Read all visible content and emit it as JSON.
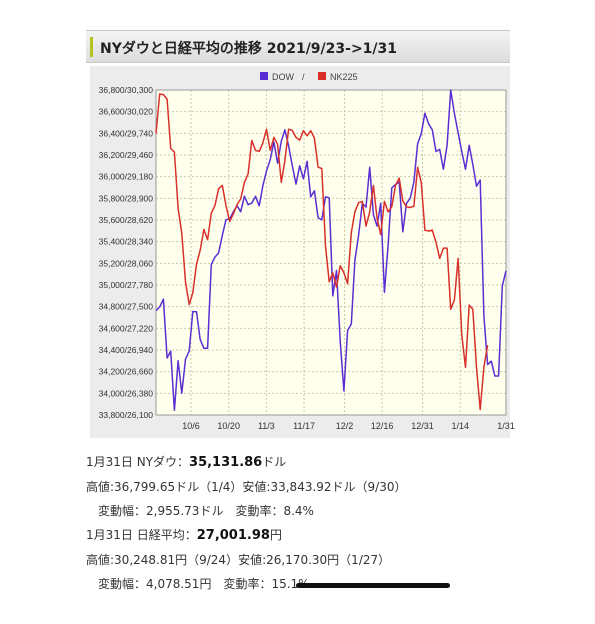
{
  "header": {
    "title": "NYダウと日経平均の推移 2021/9/23->1/31"
  },
  "chart_data": {
    "type": "line",
    "title": "",
    "legend": {
      "placement": "top-center",
      "separator": "/"
    },
    "y_tick_labels": [
      "36,800/30,300",
      "36,600/30,020",
      "36,400/29,740",
      "36,200/29,460",
      "36,000/29,180",
      "35,800/28,900",
      "35,600/28,620",
      "35,400/28,340",
      "35,200/28,060",
      "35,000/27,780",
      "34,800/27,500",
      "34,600/27,220",
      "34,400/26,940",
      "34,200/26,660",
      "34,000/26,380",
      "33,800/26,100"
    ],
    "x_tick_labels": [
      "10/6",
      "10/20",
      "11/3",
      "11/17",
      "12/2",
      "12/16",
      "12/31",
      "1/14",
      "1/31"
    ],
    "x_range": [
      "9/23",
      "1/31"
    ],
    "ylim_dow": [
      33800,
      36800
    ],
    "ylim_nk225": [
      26100,
      30300
    ],
    "grid": true,
    "colors": {
      "plot_bg": "#ffffee",
      "grid": "#c9c9a8"
    },
    "series": [
      {
        "name": "DOW",
        "color": "#5a2ed2",
        "values": [
          34764,
          34798,
          34869,
          34326,
          34390,
          33843,
          34300,
          34002,
          34315,
          34390,
          34755,
          34754,
          34496,
          34416,
          34417,
          35190,
          35258,
          35295,
          35457,
          35603,
          35609,
          35677,
          35730,
          35677,
          35820,
          35741,
          35756,
          35819,
          35731,
          35913,
          36052,
          36157,
          36320,
          36124,
          36328,
          36432,
          36286,
          36100,
          35931,
          36100,
          35980,
          36142,
          35814,
          35870,
          35619,
          35601,
          35813,
          35805,
          34899,
          35135,
          34483,
          34022,
          34580,
          34640,
          35227,
          35460,
          35754,
          35719,
          36087,
          35650,
          35544,
          35754,
          34932,
          35365,
          35897,
          35928,
          35950,
          35491,
          35753,
          35801,
          35951,
          36302,
          36398,
          36585,
          36488,
          36432,
          36232,
          36252,
          36069,
          36290,
          36799,
          36585,
          36407,
          36231,
          36068,
          36290,
          36113,
          35911,
          35969,
          34715,
          34265,
          34297,
          34160,
          34160,
          34990,
          35131
        ]
      },
      {
        "name": "NK225",
        "color": "#d8302a",
        "values": [
          29740,
          30248,
          30240,
          30183,
          29544,
          29499,
          28772,
          28444,
          27822,
          27528,
          27678,
          28048,
          28230,
          28498,
          28366,
          28708,
          28805,
          29025,
          29068,
          28804,
          28600,
          28700,
          28820,
          28893,
          29106,
          29215,
          29647,
          29520,
          29507,
          29612,
          29794,
          29520,
          29688,
          29598,
          29107,
          29388,
          29794,
          29776,
          29688,
          29652,
          29774,
          29708,
          29774,
          29680,
          29302,
          29285,
          28283,
          27822,
          27935,
          27753,
          28029,
          27936,
          27795,
          28455,
          28725,
          28843,
          28860,
          28541,
          28725,
          29066,
          28640,
          28432,
          28860,
          28725,
          28792,
          29066,
          29161,
          28870,
          28791,
          28782,
          28798,
          29301,
          29098,
          28488,
          28478,
          28489,
          28333,
          28124,
          28257,
          28257,
          27467,
          27588,
          28124,
          27131,
          26717,
          27522,
          27467,
          26717,
          26170,
          26717,
          27001
        ]
      }
    ]
  },
  "info": {
    "dow_date": "1月31日 NYダウ：",
    "dow_value": "35,131.86",
    "dow_unit": "ドル",
    "dow_range": "高値:36,799.65ドル（1/4）安値:33,843.92ドル（9/30）",
    "dow_change": "変動幅：2,955.73ドル　変動率：8.4%",
    "nk_date": "1月31日 日経平均：",
    "nk_value": "27,001.98",
    "nk_unit": "円",
    "nk_range": "高値:30,248.81円（9/24）安値:26,170.30円（1/27）",
    "nk_change": "変動幅：4,078.51円　変動率：15.1%"
  }
}
